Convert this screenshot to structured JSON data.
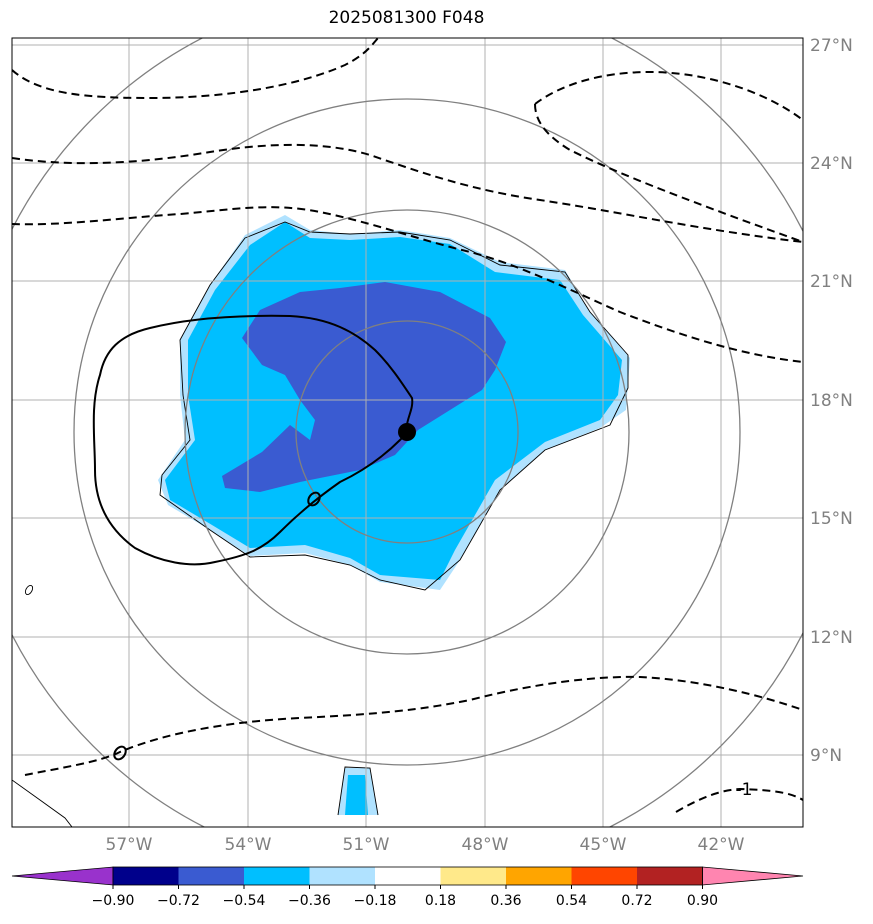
{
  "title": "2025081300 F048",
  "lat_labels": [
    "27°N",
    "24°N",
    "21°N",
    "18°N",
    "15°N",
    "12°N",
    "9°N"
  ],
  "lon_labels": [
    "57°W",
    "54°W",
    "51°W",
    "48°W",
    "45°W",
    "42°W"
  ],
  "contour_label": "-1",
  "zero_label": "0",
  "colorbar": {
    "colors": [
      "#9932cc",
      "#00008b",
      "#3a5bd1",
      "#00bfff",
      "#b0e2ff",
      "#ffffff",
      "#ffe98a",
      "#ffa500",
      "#ff4500",
      "#b22222",
      "#ff85b0"
    ],
    "tick_labels": [
      "−0.90",
      "−0.72",
      "−0.54",
      "−0.36",
      "−0.18",
      "0.18",
      "0.36",
      "0.54",
      "0.72",
      "0.90"
    ]
  },
  "storm_center": {
    "lon": "50°W",
    "lat": "17.2°N"
  }
}
